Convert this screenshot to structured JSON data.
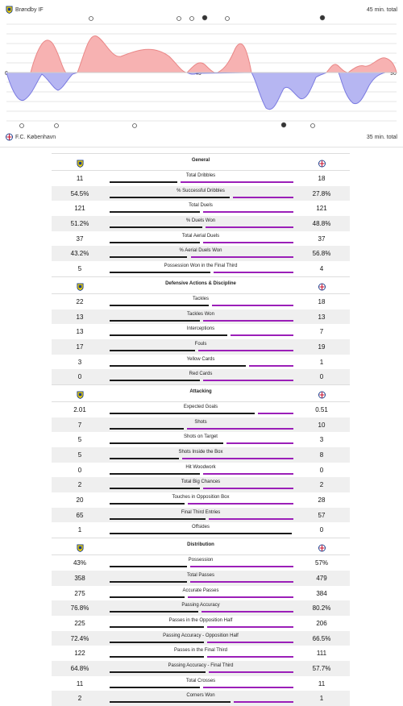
{
  "momentum": {
    "home_team": "Brøndby IF",
    "away_team": "F.C. København",
    "home_total": "45 min. total",
    "away_total": "35 min. total",
    "mid_label": "45",
    "end_label": "90",
    "start_label": "0",
    "colors": {
      "home": "#f5a3a3",
      "away": "#a9a9f0",
      "home_line": "#e88080",
      "away_line": "#7777dd"
    }
  },
  "colors": {
    "home_bar": "#1a1a1a",
    "away_bar": "#9b1fb8"
  },
  "sections": [
    {
      "title": "General",
      "rows": [
        {
          "label": "Total Dribbles",
          "home": "11",
          "away": "18",
          "hv": 11,
          "av": 18
        },
        {
          "label": "% Successful Dribbles",
          "home": "54.5%",
          "away": "27.8%",
          "hv": 54.5,
          "av": 27.8
        },
        {
          "label": "Total Duels",
          "home": "121",
          "away": "121",
          "hv": 121,
          "av": 121
        },
        {
          "label": "% Duels Won",
          "home": "51.2%",
          "away": "48.8%",
          "hv": 51.2,
          "av": 48.8
        },
        {
          "label": "Total Aerial Duels",
          "home": "37",
          "away": "37",
          "hv": 37,
          "av": 37
        },
        {
          "label": "% Aerial Duels Won",
          "home": "43.2%",
          "away": "56.8%",
          "hv": 43.2,
          "av": 56.8
        },
        {
          "label": "Possession Won in the Final Third",
          "home": "5",
          "away": "4",
          "hv": 5,
          "av": 4
        }
      ]
    },
    {
      "title": "Defensive Actions & Discipline",
      "rows": [
        {
          "label": "Tackles",
          "home": "22",
          "away": "18",
          "hv": 22,
          "av": 18
        },
        {
          "label": "Tackles Won",
          "home": "13",
          "away": "13",
          "hv": 13,
          "av": 13
        },
        {
          "label": "Interceptions",
          "home": "13",
          "away": "7",
          "hv": 13,
          "av": 7
        },
        {
          "label": "Fouls",
          "home": "17",
          "away": "19",
          "hv": 17,
          "av": 19
        },
        {
          "label": "Yellow Cards",
          "home": "3",
          "away": "1",
          "hv": 3,
          "av": 1
        },
        {
          "label": "Red Cards",
          "home": "0",
          "away": "0",
          "hv": 0,
          "av": 0
        }
      ]
    },
    {
      "title": "Attacking",
      "rows": [
        {
          "label": "Expected Goals",
          "home": "2.01",
          "away": "0.51",
          "hv": 2.01,
          "av": 0.51
        },
        {
          "label": "Shots",
          "home": "7",
          "away": "10",
          "hv": 7,
          "av": 10
        },
        {
          "label": "Shots on Target",
          "home": "5",
          "away": "3",
          "hv": 5,
          "av": 3
        },
        {
          "label": "Shots Inside the Box",
          "home": "5",
          "away": "8",
          "hv": 5,
          "av": 8
        },
        {
          "label": "Hit Woodwork",
          "home": "0",
          "away": "0",
          "hv": 0,
          "av": 0
        },
        {
          "label": "Total Big Chances",
          "home": "2",
          "away": "2",
          "hv": 2,
          "av": 2
        },
        {
          "label": "Touches in Opposition Box",
          "home": "20",
          "away": "28",
          "hv": 20,
          "av": 28
        },
        {
          "label": "Final Third Entries",
          "home": "65",
          "away": "57",
          "hv": 65,
          "av": 57
        },
        {
          "label": "Offsides",
          "home": "1",
          "away": "0",
          "hv": 1,
          "av": 0
        }
      ]
    },
    {
      "title": "Distribution",
      "rows": [
        {
          "label": "Possession",
          "home": "43%",
          "away": "57%",
          "hv": 43,
          "av": 57
        },
        {
          "label": "Total Passes",
          "home": "358",
          "away": "479",
          "hv": 358,
          "av": 479
        },
        {
          "label": "Accurate Passes",
          "home": "275",
          "away": "384",
          "hv": 275,
          "av": 384
        },
        {
          "label": "Passing Accuracy",
          "home": "76.8%",
          "away": "80.2%",
          "hv": 76.8,
          "av": 80.2
        },
        {
          "label": "Passes in the Opposition Half",
          "home": "225",
          "away": "206",
          "hv": 225,
          "av": 206
        },
        {
          "label": "Passing Accuracy - Opposition Half",
          "home": "72.4%",
          "away": "66.5%",
          "hv": 72.4,
          "av": 66.5
        },
        {
          "label": "Passes in the Final Third",
          "home": "122",
          "away": "111",
          "hv": 122,
          "av": 111
        },
        {
          "label": "Passing Accuracy - Final Third",
          "home": "64.8%",
          "away": "57.7%",
          "hv": 64.8,
          "av": 57.7
        },
        {
          "label": "Total Crosses",
          "home": "11",
          "away": "11",
          "hv": 11,
          "av": 11
        },
        {
          "label": "Corners Won",
          "home": "2",
          "away": "1",
          "hv": 2,
          "av": 1
        }
      ]
    }
  ]
}
